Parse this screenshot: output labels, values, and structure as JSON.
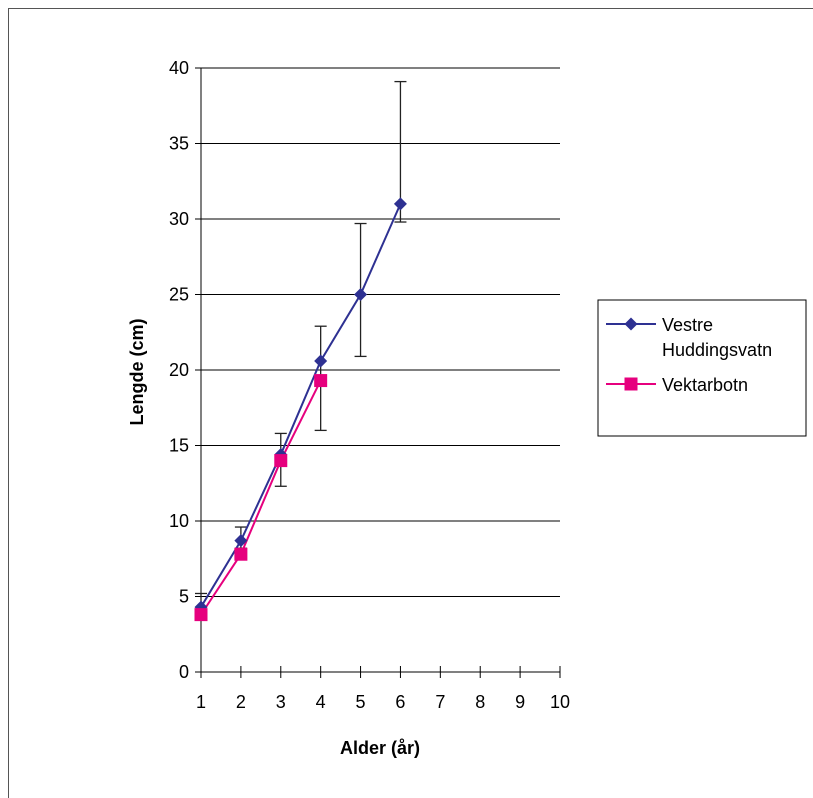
{
  "chart_data": {
    "type": "line",
    "xlabel": "Alder (år)",
    "ylabel": "Lengde (cm)",
    "xlim": [
      1,
      10
    ],
    "ylim": [
      0,
      40
    ],
    "x_ticks": [
      "1",
      "2",
      "3",
      "4",
      "5",
      "6",
      "7",
      "8",
      "9",
      "10"
    ],
    "y_ticks": [
      "0",
      "5",
      "10",
      "15",
      "20",
      "25",
      "30",
      "35",
      "40"
    ],
    "grid": "horizontal",
    "legend_position": "right",
    "series": [
      {
        "name_lines": [
          "Vestre",
          "Huddingsvatn"
        ],
        "color": "#2e3192",
        "marker": "diamond",
        "x": [
          1,
          2,
          3,
          4,
          5,
          6
        ],
        "y": [
          4.3,
          8.7,
          14.4,
          20.6,
          25.0,
          31.0
        ],
        "err_low": [
          4.0,
          8.2,
          12.3,
          16.0,
          20.9,
          29.8
        ],
        "err_high": [
          5.2,
          9.6,
          15.8,
          22.9,
          29.7,
          39.1
        ]
      },
      {
        "name_lines": [
          "Vektarbotn"
        ],
        "color": "#e6007e",
        "marker": "square",
        "x": [
          1,
          2,
          3,
          4
        ],
        "y": [
          3.8,
          7.8,
          14.0,
          19.3
        ]
      }
    ]
  }
}
